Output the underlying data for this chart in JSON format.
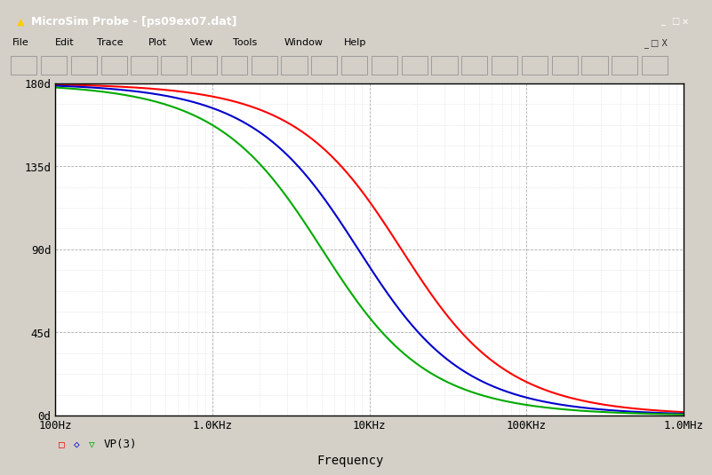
{
  "title": "MicroSim Probe - [ps09ex07.dat]",
  "xlabel": "Frequency",
  "freq_min": 100,
  "freq_max": 1000000,
  "phase_min": 0,
  "phase_max": 180,
  "yticks": [
    0,
    45,
    90,
    135,
    180
  ],
  "ytick_labels": [
    "0d",
    "45d",
    "90d",
    "135d",
    "180d"
  ],
  "xtick_positions": [
    100,
    1000,
    10000,
    100000,
    1000000
  ],
  "xtick_labels": [
    "100Hz",
    "1.0KHz",
    "10KHz",
    "100KHz",
    "1.0MHz"
  ],
  "curves": [
    {
      "color": "#ff0000",
      "fc": 16000
    },
    {
      "color": "#0000cc",
      "fc": 8500
    },
    {
      "color": "#00aa00",
      "fc": 5000
    }
  ],
  "legend_label": "VP(3)",
  "bg_plot": "#ffffff",
  "bg_outer": "#d4d0c8",
  "bg_titlebar": "#7b9b3a",
  "bg_menubar": "#d4d0c8",
  "bg_toolbar": "#d4d0c8",
  "line_width": 1.5,
  "title_bar_text": "MicroSim Probe - [ps09ex07.dat]",
  "menu_items": [
    "File",
    "Edit",
    "Trace",
    "Plot",
    "View",
    "Tools",
    "Window",
    "Help"
  ]
}
